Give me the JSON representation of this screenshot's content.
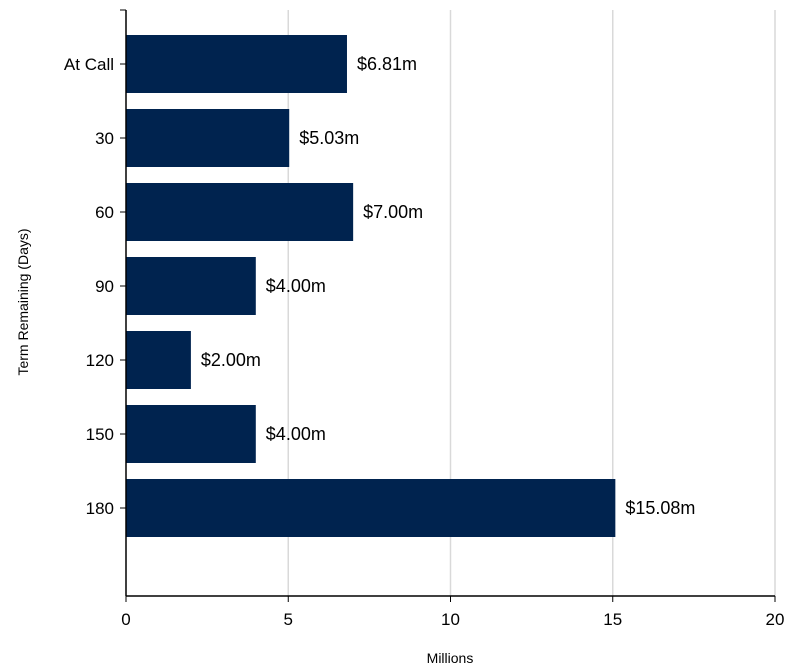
{
  "chart_data": {
    "type": "bar",
    "orientation": "horizontal",
    "categories": [
      "At Call",
      "30",
      "60",
      "90",
      "120",
      "150",
      "180"
    ],
    "values": [
      6.81,
      5.03,
      7.0,
      4.0,
      2.0,
      4.0,
      15.08
    ],
    "data_labels": [
      "$6.81m",
      "$5.03m",
      "$7.00m",
      "$4.00m",
      "$2.00m",
      "$4.00m",
      "$15.08m"
    ],
    "xlabel": "Millions",
    "ylabel": "Term Remaining  (Days)",
    "xlim": [
      0,
      20
    ],
    "x_ticks": [
      "0",
      "5",
      "10",
      "15",
      "20"
    ],
    "x_tick_values": [
      0,
      5,
      10,
      15,
      20
    ],
    "grid": "vertical",
    "bar_color": "#00234f",
    "grid_color": "#d9d9d9",
    "axis_color": "#000000"
  }
}
